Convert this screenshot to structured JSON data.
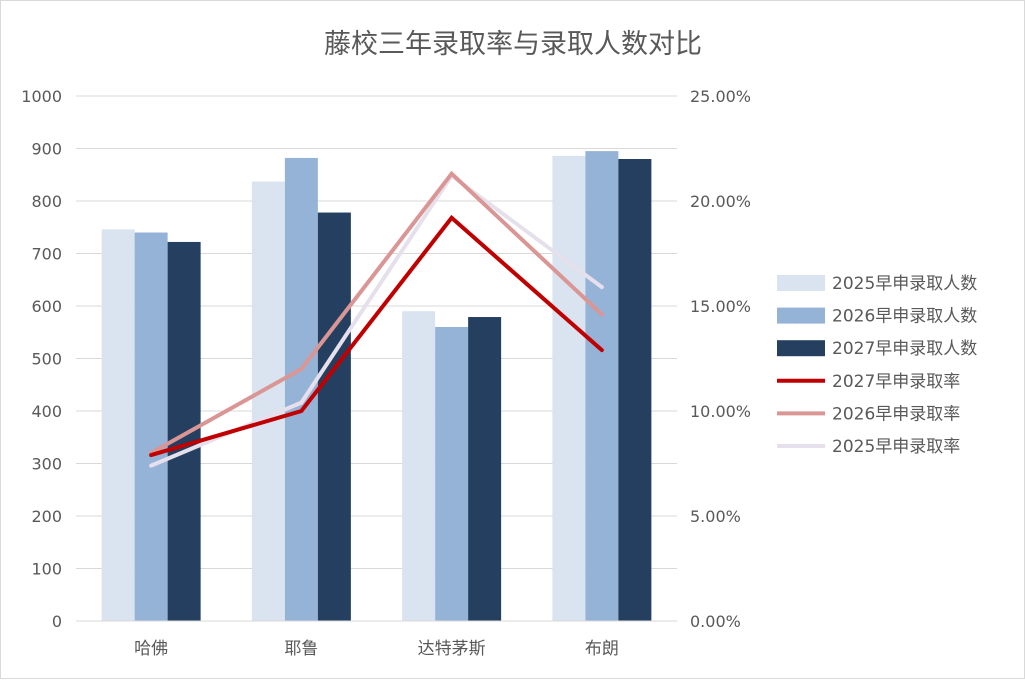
{
  "chart_data": {
    "type": "bar",
    "title": "藤校三年录取率与录取人数对比",
    "categories": [
      "哈佛",
      "耶鲁",
      "达特茅斯",
      "布朗"
    ],
    "bar_series": [
      {
        "name": "2025早申录取人数",
        "values": [
          746,
          837,
          590,
          886
        ],
        "color": "#dae3f0"
      },
      {
        "name": "2026早申录取人数",
        "values": [
          740,
          882,
          560,
          895
        ],
        "color": "#95b3d7"
      },
      {
        "name": "2027早申录取人数",
        "values": [
          722,
          778,
          579,
          880
        ],
        "color": "#243f60"
      }
    ],
    "line_series": [
      {
        "name": "2027早申录取率",
        "values": [
          7.9,
          10.0,
          19.2,
          12.9
        ],
        "color": "#c00000"
      },
      {
        "name": "2026早申录取率",
        "values": [
          8.0,
          12.0,
          21.3,
          14.6
        ],
        "color": "#da9694"
      },
      {
        "name": "2025早申录取率",
        "values": [
          7.4,
          10.4,
          21.2,
          15.9
        ],
        "color": "#e6e0ec"
      }
    ],
    "legend_order": [
      "2025早申录取人数",
      "2026早申录取人数",
      "2027早申录取人数",
      "2027早申录取率",
      "2026早申录取率",
      "2025早申录取率"
    ],
    "y_left": {
      "min": 0,
      "max": 1000,
      "step": 100,
      "ticks": [
        "0",
        "100",
        "200",
        "300",
        "400",
        "500",
        "600",
        "700",
        "800",
        "900",
        "1000"
      ]
    },
    "y_right": {
      "min": 0,
      "max": 25,
      "step": 5,
      "ticks": [
        "0.00%",
        "5.00%",
        "10.00%",
        "15.00%",
        "20.00%",
        "25.00%"
      ]
    },
    "grid": true,
    "legend_position": "right"
  }
}
